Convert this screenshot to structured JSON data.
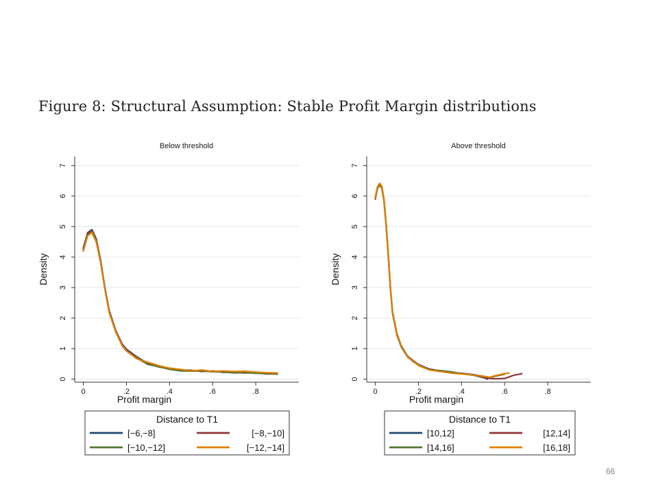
{
  "figure_title": "Figure 8: Structural Assumption: Stable Profit Margin distributions",
  "slide_number": "66",
  "chart_data": [
    {
      "type": "line",
      "title": "Below threshold",
      "xlabel": "Profit margin",
      "ylabel": "Density",
      "xlim": [
        -0.04,
        1.0
      ],
      "ylim": [
        -0.1,
        7.3
      ],
      "x_ticks": [
        0,
        0.2,
        0.4,
        0.6,
        0.8
      ],
      "x_tick_labels": [
        "0",
        ".2",
        ".4",
        ".6",
        ".8"
      ],
      "y_ticks": [
        0,
        1,
        2,
        3,
        4,
        5,
        6,
        7
      ],
      "y_tick_labels": [
        "0",
        "1",
        "2",
        "3",
        "4",
        "5",
        "6",
        "7"
      ],
      "grid": true,
      "legend": {
        "title": "Distance to T1",
        "position": "bottom"
      },
      "series": [
        {
          "name": "[−6,−8]",
          "color": "#1a476f",
          "x": [
            0,
            0.02,
            0.04,
            0.06,
            0.08,
            0.1,
            0.12,
            0.15,
            0.18,
            0.2,
            0.25,
            0.3,
            0.35,
            0.4,
            0.45,
            0.5,
            0.55,
            0.6,
            0.65,
            0.7,
            0.75,
            0.8,
            0.85,
            0.9
          ],
          "y": [
            4.3,
            4.8,
            4.9,
            4.6,
            3.9,
            3.0,
            2.25,
            1.6,
            1.15,
            0.98,
            0.72,
            0.52,
            0.42,
            0.33,
            0.3,
            0.29,
            0.26,
            0.25,
            0.23,
            0.22,
            0.21,
            0.2,
            0.18,
            0.18
          ]
        },
        {
          "name": "[−8,−10]",
          "color": "#90353b",
          "x": [
            0,
            0.02,
            0.04,
            0.06,
            0.08,
            0.1,
            0.12,
            0.15,
            0.18,
            0.2,
            0.25,
            0.3,
            0.35,
            0.4,
            0.45,
            0.5,
            0.55,
            0.6,
            0.65,
            0.7,
            0.75,
            0.8,
            0.85,
            0.9
          ],
          "y": [
            4.25,
            4.78,
            4.88,
            4.58,
            3.88,
            2.98,
            2.22,
            1.58,
            1.13,
            0.96,
            0.7,
            0.5,
            0.4,
            0.34,
            0.29,
            0.28,
            0.25,
            0.27,
            0.22,
            0.23,
            0.2,
            0.21,
            0.17,
            0.17
          ]
        },
        {
          "name": "[−10,−12]",
          "color": "#55752f",
          "x": [
            0,
            0.02,
            0.04,
            0.06,
            0.08,
            0.1,
            0.12,
            0.15,
            0.18,
            0.2,
            0.25,
            0.3,
            0.35,
            0.4,
            0.45,
            0.5,
            0.55,
            0.6,
            0.65,
            0.7,
            0.75,
            0.8,
            0.85,
            0.9
          ],
          "y": [
            4.22,
            4.72,
            4.84,
            4.55,
            3.86,
            2.97,
            2.2,
            1.56,
            1.1,
            0.93,
            0.68,
            0.48,
            0.41,
            0.32,
            0.27,
            0.26,
            0.27,
            0.24,
            0.24,
            0.2,
            0.22,
            0.19,
            0.19,
            0.16
          ]
        },
        {
          "name": "[−12,−14]",
          "color": "#e37e00",
          "x": [
            0,
            0.02,
            0.04,
            0.06,
            0.08,
            0.1,
            0.12,
            0.15,
            0.18,
            0.2,
            0.25,
            0.3,
            0.35,
            0.4,
            0.45,
            0.5,
            0.55,
            0.6,
            0.65,
            0.7,
            0.75,
            0.8,
            0.85,
            0.9
          ],
          "y": [
            4.2,
            4.7,
            4.8,
            4.5,
            3.82,
            2.95,
            2.18,
            1.55,
            1.1,
            0.92,
            0.66,
            0.55,
            0.44,
            0.36,
            0.32,
            0.27,
            0.3,
            0.25,
            0.27,
            0.25,
            0.26,
            0.23,
            0.21,
            0.2
          ]
        }
      ]
    },
    {
      "type": "line",
      "title": "Above threshold",
      "xlabel": "Profit margin",
      "ylabel": "Density",
      "xlim": [
        -0.04,
        1.0
      ],
      "ylim": [
        -0.1,
        7.3
      ],
      "x_ticks": [
        0,
        0.2,
        0.4,
        0.6,
        0.8
      ],
      "x_tick_labels": [
        "0",
        ".2",
        ".4",
        ".6",
        ".8"
      ],
      "y_ticks": [
        0,
        1,
        2,
        3,
        4,
        5,
        6,
        7
      ],
      "y_tick_labels": [
        "0",
        "1",
        "2",
        "3",
        "4",
        "5",
        "6",
        "7"
      ],
      "grid": true,
      "legend": {
        "title": "Distance to T1",
        "position": "bottom"
      },
      "series": [
        {
          "name": "[10,12]",
          "color": "#1a476f",
          "x": [
            0,
            0.01,
            0.02,
            0.03,
            0.04,
            0.05,
            0.06,
            0.07,
            0.08,
            0.1,
            0.12,
            0.15,
            0.18,
            0.2,
            0.25,
            0.3,
            0.35,
            0.4,
            0.45,
            0.48,
            0.5,
            0.52
          ],
          "y": [
            5.95,
            6.3,
            6.4,
            6.3,
            5.9,
            5.1,
            4.1,
            3.0,
            2.2,
            1.5,
            1.1,
            0.75,
            0.58,
            0.48,
            0.33,
            0.27,
            0.22,
            0.19,
            0.15,
            0.12,
            0.06,
            0.0
          ]
        },
        {
          "name": "[12,14]",
          "color": "#90353b",
          "x": [
            0,
            0.01,
            0.02,
            0.03,
            0.04,
            0.05,
            0.06,
            0.07,
            0.08,
            0.1,
            0.12,
            0.15,
            0.18,
            0.2,
            0.25,
            0.3,
            0.35,
            0.4,
            0.45,
            0.5,
            0.53,
            0.56,
            0.6,
            0.64,
            0.68
          ],
          "y": [
            5.9,
            6.28,
            6.38,
            6.28,
            5.88,
            5.08,
            4.08,
            2.98,
            2.18,
            1.48,
            1.08,
            0.74,
            0.57,
            0.47,
            0.32,
            0.26,
            0.21,
            0.18,
            0.14,
            0.05,
            0.02,
            0.01,
            0.02,
            0.12,
            0.18
          ]
        },
        {
          "name": "[14,16]",
          "color": "#55752f",
          "x": [
            0,
            0.01,
            0.02,
            0.03,
            0.04,
            0.05,
            0.06,
            0.07,
            0.08,
            0.1,
            0.12,
            0.15,
            0.18,
            0.2,
            0.25,
            0.3,
            0.35,
            0.4,
            0.45,
            0.5,
            0.53,
            0.56,
            0.6
          ],
          "y": [
            5.92,
            6.25,
            6.36,
            6.26,
            5.85,
            5.05,
            4.05,
            2.96,
            2.15,
            1.45,
            1.06,
            0.72,
            0.55,
            0.46,
            0.31,
            0.28,
            0.24,
            0.18,
            0.13,
            0.08,
            0.05,
            0.1,
            0.16
          ]
        },
        {
          "name": "[16,18]",
          "color": "#e37e00",
          "x": [
            0,
            0.01,
            0.02,
            0.03,
            0.04,
            0.05,
            0.06,
            0.07,
            0.08,
            0.1,
            0.12,
            0.15,
            0.18,
            0.2,
            0.25,
            0.3,
            0.35,
            0.4,
            0.45,
            0.5,
            0.53,
            0.56,
            0.6,
            0.62
          ],
          "y": [
            5.95,
            6.3,
            6.42,
            6.33,
            5.92,
            5.12,
            4.12,
            3.02,
            2.2,
            1.5,
            1.1,
            0.73,
            0.56,
            0.45,
            0.3,
            0.25,
            0.2,
            0.17,
            0.14,
            0.1,
            0.06,
            0.12,
            0.18,
            0.2
          ]
        }
      ]
    }
  ]
}
